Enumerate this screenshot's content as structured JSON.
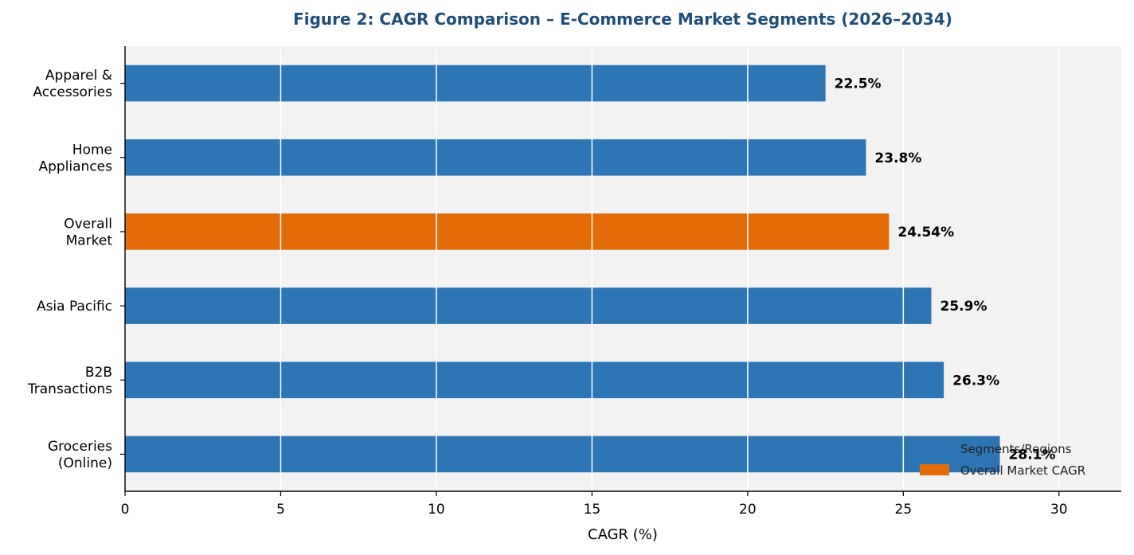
{
  "chart_data": {
    "type": "bar",
    "orientation": "horizontal",
    "title": "Figure 2: CAGR Comparison – E-Commerce Market Segments (2026–2034)",
    "xlabel": "CAGR (%)",
    "ylabel": "",
    "xlim": [
      0,
      32
    ],
    "xticks": [
      0,
      5,
      10,
      15,
      20,
      25,
      30
    ],
    "grid": "x-axis vertical lines",
    "categories": [
      [
        "Apparel &",
        "Accessories"
      ],
      [
        "Home",
        "Appliances"
      ],
      [
        "Overall",
        "Market"
      ],
      [
        "Asia Pacific"
      ],
      [
        "B2B",
        "Transactions"
      ],
      [
        "Groceries",
        "(Online)"
      ]
    ],
    "values": [
      22.5,
      23.8,
      24.54,
      25.9,
      26.3,
      28.1
    ],
    "value_labels": [
      "22.5%",
      "23.8%",
      "24.54%",
      "25.9%",
      "26.3%",
      "28.1%"
    ],
    "highlight_index": 2,
    "colors": {
      "segment": "#2e75b6",
      "overall": "#e36c09",
      "plot_background": "#f2f2f2",
      "grid": "#ffffff",
      "title": "#1f4e79"
    },
    "legend": {
      "placement": "bottom-right",
      "entries": [
        {
          "label": "Segments/Regions",
          "color": "#2e75b6"
        },
        {
          "label": "Overall Market CAGR",
          "color": "#e36c09"
        }
      ]
    }
  }
}
